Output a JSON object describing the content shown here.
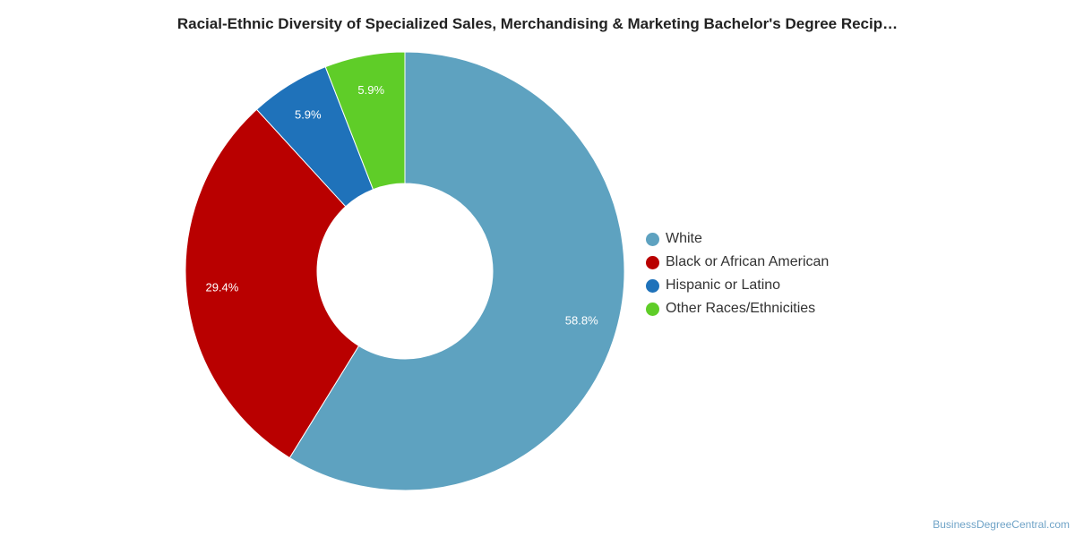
{
  "chart_data": {
    "type": "pie",
    "title": "Racial-Ethnic Diversity of Specialized Sales, Merchandising & Marketing Bachelor's Degree Recip…",
    "donut": true,
    "legend_position": "right",
    "slices": [
      {
        "label": "White",
        "value": 58.8,
        "value_label": "58.8%",
        "color": "#5ea2c0"
      },
      {
        "label": "Black or African American",
        "value": 29.4,
        "value_label": "29.4%",
        "color": "#b90000"
      },
      {
        "label": "Hispanic or Latino",
        "value": 5.9,
        "value_label": "5.9%",
        "color": "#1f72ba"
      },
      {
        "label": "Other Races/Ethnicities",
        "value": 5.9,
        "value_label": "5.9%",
        "color": "#5fcd28"
      }
    ]
  },
  "source": "BusinessDegreeCentral.com"
}
